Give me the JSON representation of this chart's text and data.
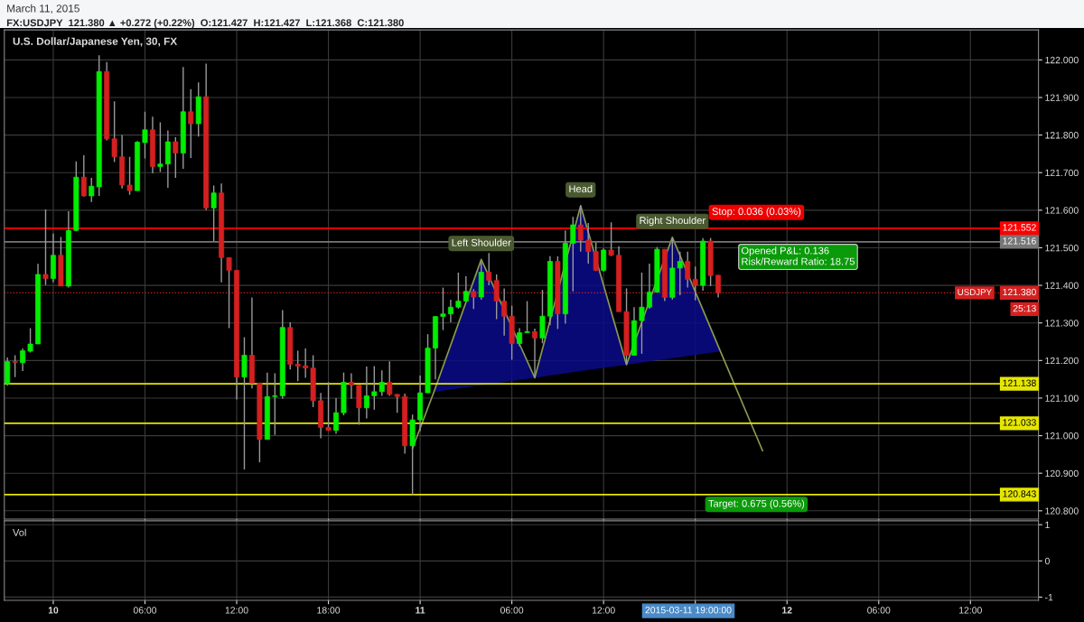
{
  "chart_data": [
    {
      "type": "candlestick",
      "title": "U.S. Dollar/Japanese Yen, 30, FX",
      "subtitle": "FX:USDJPY  121.380 ▲ +0.272 (+0.22%)  O:121.427  H:121.427  L:121.368  C:121.380",
      "x": [
        "2015-03-09T21:00",
        "2015-03-09T21:30",
        "2015-03-09T22:00",
        "2015-03-09T22:30",
        "2015-03-09T23:00",
        "2015-03-09T23:30",
        "2015-03-10T00:00",
        "2015-03-10T00:30",
        "2015-03-10T01:00",
        "2015-03-10T01:30",
        "2015-03-10T02:00",
        "2015-03-10T02:30",
        "2015-03-10T03:00",
        "2015-03-10T03:30",
        "2015-03-10T04:00",
        "2015-03-10T04:30",
        "2015-03-10T05:00",
        "2015-03-10T05:30",
        "2015-03-10T06:00",
        "2015-03-10T06:30",
        "2015-03-10T07:00",
        "2015-03-10T07:30",
        "2015-03-10T08:00",
        "2015-03-10T08:30",
        "2015-03-10T09:00",
        "2015-03-10T09:30",
        "2015-03-10T10:00",
        "2015-03-10T10:30",
        "2015-03-10T11:00",
        "2015-03-10T11:30",
        "2015-03-10T12:00",
        "2015-03-10T12:30",
        "2015-03-10T13:00",
        "2015-03-10T13:30",
        "2015-03-10T14:00",
        "2015-03-10T14:30",
        "2015-03-10T15:00",
        "2015-03-10T15:30",
        "2015-03-10T16:00",
        "2015-03-10T16:30",
        "2015-03-10T17:00",
        "2015-03-10T17:30",
        "2015-03-10T18:00",
        "2015-03-10T18:30",
        "2015-03-10T19:00",
        "2015-03-10T19:30",
        "2015-03-10T20:00",
        "2015-03-10T20:30",
        "2015-03-10T21:00",
        "2015-03-10T21:30",
        "2015-03-10T22:00",
        "2015-03-10T22:30",
        "2015-03-10T23:00",
        "2015-03-10T23:30",
        "2015-03-11T00:00",
        "2015-03-11T00:30",
        "2015-03-11T01:00",
        "2015-03-11T01:30",
        "2015-03-11T02:00",
        "2015-03-11T02:30",
        "2015-03-11T03:00",
        "2015-03-11T03:30",
        "2015-03-11T04:00",
        "2015-03-11T04:30",
        "2015-03-11T05:00",
        "2015-03-11T05:30",
        "2015-03-11T06:00",
        "2015-03-11T06:30",
        "2015-03-11T07:00",
        "2015-03-11T07:30",
        "2015-03-11T08:00",
        "2015-03-11T08:30",
        "2015-03-11T09:00",
        "2015-03-11T09:30",
        "2015-03-11T10:00",
        "2015-03-11T10:30",
        "2015-03-11T11:00",
        "2015-03-11T11:30",
        "2015-03-11T12:00",
        "2015-03-11T12:30",
        "2015-03-11T13:00",
        "2015-03-11T13:30",
        "2015-03-11T14:00",
        "2015-03-11T14:30",
        "2015-03-11T15:00",
        "2015-03-11T15:30",
        "2015-03-11T16:00",
        "2015-03-11T16:30",
        "2015-03-11T17:00",
        "2015-03-11T17:30",
        "2015-03-11T18:00",
        "2015-03-11T18:30",
        "2015-03-11T19:00",
        "2015-03-11T19:30"
      ],
      "ohlc": [
        [
          121.138,
          121.208,
          121.133,
          121.197
        ],
        [
          121.197,
          121.214,
          121.156,
          121.195
        ],
        [
          121.194,
          121.232,
          121.172,
          121.226
        ],
        [
          121.225,
          121.286,
          121.221,
          121.244
        ],
        [
          121.244,
          121.457,
          121.244,
          121.429
        ],
        [
          121.429,
          121.602,
          121.401,
          121.418
        ],
        [
          121.418,
          121.538,
          121.408,
          121.48
        ],
        [
          121.48,
          121.529,
          121.398,
          121.398
        ],
        [
          121.398,
          121.597,
          121.394,
          121.546
        ],
        [
          121.546,
          121.73,
          121.544,
          121.688
        ],
        [
          121.688,
          121.746,
          121.636,
          121.638
        ],
        [
          121.638,
          121.686,
          121.622,
          121.664
        ],
        [
          121.662,
          122.012,
          121.638,
          121.969
        ],
        [
          121.969,
          121.994,
          121.786,
          121.79
        ],
        [
          121.79,
          121.89,
          121.728,
          121.742
        ],
        [
          121.742,
          121.8,
          121.658,
          121.667
        ],
        [
          121.667,
          121.742,
          121.641,
          121.652
        ],
        [
          121.652,
          121.784,
          121.652,
          121.781
        ],
        [
          121.78,
          121.862,
          121.738,
          121.814
        ],
        [
          121.814,
          121.849,
          121.698,
          121.716
        ],
        [
          121.716,
          121.834,
          121.702,
          121.723
        ],
        [
          121.723,
          121.812,
          121.66,
          121.782
        ],
        [
          121.782,
          121.794,
          121.686,
          121.752
        ],
        [
          121.752,
          121.981,
          121.71,
          121.862
        ],
        [
          121.862,
          121.922,
          121.739,
          121.83
        ],
        [
          121.83,
          121.94,
          121.796,
          121.902
        ],
        [
          121.902,
          121.99,
          121.6,
          121.606
        ],
        [
          121.606,
          121.666,
          121.518,
          121.646
        ],
        [
          121.646,
          121.671,
          121.408,
          121.474
        ],
        [
          121.474,
          121.474,
          121.286,
          121.44
        ],
        [
          121.44,
          121.44,
          121.096,
          121.156
        ],
        [
          121.156,
          121.262,
          120.91,
          121.214
        ],
        [
          121.214,
          121.368,
          121.126,
          121.14
        ],
        [
          121.14,
          121.14,
          120.929,
          120.99
        ],
        [
          120.99,
          121.168,
          120.99,
          121.104
        ],
        [
          121.104,
          121.166,
          121.002,
          121.106
        ],
        [
          121.106,
          121.334,
          121.098,
          121.288
        ],
        [
          121.288,
          121.302,
          121.176,
          121.19
        ],
        [
          121.19,
          121.226,
          121.145,
          121.185
        ],
        [
          121.186,
          121.232,
          121.154,
          121.18
        ],
        [
          121.18,
          121.214,
          121.076,
          121.093
        ],
        [
          121.093,
          121.114,
          120.993,
          121.022
        ],
        [
          121.022,
          121.142,
          121.013,
          121.014
        ],
        [
          121.014,
          121.1,
          121.005,
          121.061
        ],
        [
          121.061,
          121.168,
          121.054,
          121.142
        ],
        [
          121.142,
          121.166,
          121.098,
          121.134
        ],
        [
          121.134,
          121.134,
          121.029,
          121.074
        ],
        [
          121.074,
          121.184,
          121.046,
          121.106
        ],
        [
          121.106,
          121.185,
          121.069,
          121.117
        ],
        [
          121.117,
          121.174,
          121.106,
          121.142
        ],
        [
          121.142,
          121.198,
          121.106,
          121.11
        ],
        [
          121.11,
          121.11,
          121.061,
          121.104
        ],
        [
          121.104,
          121.112,
          120.952,
          120.973
        ],
        [
          120.973,
          121.056,
          120.843,
          121.042
        ],
        [
          121.042,
          121.16,
          121.012,
          121.114
        ],
        [
          121.114,
          121.27,
          121.114,
          121.233
        ],
        [
          121.233,
          121.318,
          121.15,
          121.317
        ],
        [
          121.317,
          121.394,
          121.281,
          121.324
        ],
        [
          121.324,
          121.362,
          121.302,
          121.342
        ],
        [
          121.342,
          121.434,
          121.338,
          121.358
        ],
        [
          121.358,
          121.424,
          121.357,
          121.384
        ],
        [
          121.384,
          121.39,
          121.337,
          121.369
        ],
        [
          121.369,
          121.462,
          121.362,
          121.435
        ],
        [
          121.435,
          121.486,
          121.4,
          121.413
        ],
        [
          121.413,
          121.429,
          121.31,
          121.358
        ],
        [
          121.358,
          121.392,
          121.266,
          121.318
        ],
        [
          121.318,
          121.346,
          121.202,
          121.245
        ],
        [
          121.245,
          121.286,
          121.238,
          121.274
        ],
        [
          121.274,
          121.358,
          121.273,
          121.277
        ],
        [
          121.277,
          121.285,
          121.154,
          121.26
        ],
        [
          121.26,
          121.388,
          121.246,
          121.318
        ],
        [
          121.318,
          121.478,
          121.294,
          121.464
        ],
        [
          121.464,
          121.477,
          121.284,
          121.324
        ],
        [
          121.324,
          121.546,
          121.298,
          121.512
        ],
        [
          121.512,
          121.582,
          121.384,
          121.561
        ],
        [
          121.561,
          121.612,
          121.49,
          121.52
        ],
        [
          121.52,
          121.566,
          121.458,
          121.49
        ],
        [
          121.49,
          121.514,
          121.438,
          121.44
        ],
        [
          121.44,
          121.498,
          121.437,
          121.494
        ],
        [
          121.494,
          121.568,
          121.478,
          121.48
        ],
        [
          121.48,
          121.504,
          121.33,
          121.33
        ],
        [
          121.33,
          121.392,
          121.19,
          121.214
        ],
        [
          121.214,
          121.342,
          121.214,
          121.306
        ],
        [
          121.306,
          121.434,
          121.218,
          121.342
        ],
        [
          121.342,
          121.458,
          121.338,
          121.382
        ],
        [
          121.382,
          121.502,
          121.381,
          121.496
        ],
        [
          121.496,
          121.496,
          121.358,
          121.368
        ],
        [
          121.368,
          121.526,
          121.362,
          121.446
        ],
        [
          121.446,
          121.49,
          121.374,
          121.464
        ],
        [
          121.464,
          121.49,
          121.394,
          121.416
        ],
        [
          121.416,
          121.45,
          121.36,
          121.4
        ],
        [
          121.4,
          121.526,
          121.386,
          121.518
        ],
        [
          121.518,
          121.526,
          121.398,
          121.426
        ],
        [
          121.427,
          121.427,
          121.368,
          121.38
        ]
      ],
      "series": [
        {
          "type": "line",
          "color": "#8a9a50",
          "x": [
            "2015-03-10T23:30",
            "2015-03-11T00:54",
            "2015-03-11T04:00",
            "2015-03-11T07:30",
            "2015-03-11T10:30",
            "2015-03-11T13:30",
            "2015-03-11T16:30",
            "2015-03-11T19:39",
            "2015-03-11T22:24"
          ],
          "values": [
            120.966,
            121.116,
            121.469,
            121.154,
            121.612,
            121.189,
            121.528,
            121.224,
            120.96
          ],
          "lower": [
            120.966,
            121.116,
            121.134,
            121.154,
            121.172,
            121.189,
            121.206,
            121.224,
            120.96
          ],
          "upper": [
            120.966,
            121.116,
            121.469,
            121.154,
            121.612,
            121.189,
            121.528,
            121.224,
            120.96
          ]
        }
      ],
      "xlim": [
        "2015-03-09T20:48",
        "2015-03-12T16:27"
      ],
      "xticks": [
        {
          "value": "2015-03-10T00:00",
          "label": null
        },
        {
          "value": "2015-03-10T06:00",
          "label": null
        },
        {
          "value": "2015-03-10T12:00",
          "label": null
        },
        {
          "value": "2015-03-10T18:00",
          "label": null
        },
        {
          "value": "2015-03-11T00:00",
          "label": null
        },
        {
          "value": "2015-03-11T06:00",
          "label": null
        },
        {
          "value": "2015-03-11T12:00",
          "label": null
        },
        {
          "value": "2015-03-11T18:00",
          "label": null
        },
        {
          "value": "2015-03-12T00:00",
          "label": null
        },
        {
          "value": "2015-03-12T06:00",
          "label": null
        },
        {
          "value": "2015-03-12T12:00",
          "label": null
        }
      ],
      "ylim": [
        120.778,
        122.08
      ],
      "yticks": [
        {
          "value": 120.8,
          "label": "120.800"
        },
        {
          "value": 120.9,
          "label": "120.900"
        },
        {
          "value": 121.0,
          "label": "121.000"
        },
        {
          "value": 121.1,
          "label": "121.100"
        },
        {
          "value": 121.2,
          "label": "121.200"
        },
        {
          "value": 121.3,
          "label": "121.300"
        },
        {
          "value": 121.4,
          "label": "121.400"
        },
        {
          "value": 121.5,
          "label": "121.500"
        },
        {
          "value": 121.6,
          "label": "121.600"
        },
        {
          "value": 121.7,
          "label": "121.700"
        },
        {
          "value": 121.8,
          "label": "121.800"
        },
        {
          "value": 121.9,
          "label": "121.900"
        },
        {
          "value": 122.0,
          "label": "122.000"
        }
      ],
      "grid": true,
      "tick_labels": "y",
      "ref_lines": [
        {
          "axis": "y",
          "value": 121.552,
          "label": "121.552",
          "color": "#ff0000",
          "line_style": "solid"
        },
        {
          "axis": "y",
          "value": 121.516,
          "label": "121.516",
          "color": "#777777",
          "line_style": "solid"
        },
        {
          "axis": "y",
          "value": 121.38,
          "label": "121.380",
          "color": "#d42020",
          "line_style": "dotted"
        },
        {
          "axis": "y",
          "value": 121.138,
          "label": "121.138",
          "color": "#e6e600",
          "line_style": "solid"
        },
        {
          "axis": "y",
          "value": 121.033,
          "label": "121.033",
          "color": "#e6e600",
          "line_style": "solid"
        },
        {
          "axis": "y",
          "value": 120.843,
          "label": "120.843",
          "color": "#e6e600",
          "line_style": "solid"
        }
      ],
      "annotations": [
        "March 11, 2015",
        {
          "text": "Left Shoulder",
          "x": "2015-03-11T04:00",
          "y": 121.469
        },
        {
          "text": "Head",
          "x": "2015-03-11T10:30",
          "y": 121.612
        },
        {
          "text": "Right Shoulder",
          "x": "2015-03-11T16:30",
          "y": 121.528
        },
        {
          "text": "Stop: 0.036 (0.03%)",
          "x": "2015-03-11T22:00",
          "y": 121.552
        },
        {
          "text": "Opened P&L: 0.136\nRisk/Reward Ratio: 18.75",
          "x": "2015-03-11T21:00",
          "y": 121.516
        },
        {
          "text": "Target: 0.675 (0.56%)",
          "x": "2015-03-11T22:00",
          "y": 120.843
        },
        {
          "text": "USDJPY",
          "y": 121.38
        },
        {
          "text": "25:13",
          "y": 121.38
        }
      ]
    },
    {
      "type": "bar",
      "title": "Vol",
      "xlim": [
        "2015-03-09T20:48",
        "2015-03-12T16:27"
      ],
      "xticks": [
        {
          "value": "2015-03-10T00:00",
          "label": "10"
        },
        {
          "value": "2015-03-10T06:00",
          "label": "06:00"
        },
        {
          "value": "2015-03-10T12:00",
          "label": "12:00"
        },
        {
          "value": "2015-03-10T18:00",
          "label": "18:00"
        },
        {
          "value": "2015-03-11T00:00",
          "label": "11"
        },
        {
          "value": "2015-03-11T06:00",
          "label": "06:00"
        },
        {
          "value": "2015-03-11T12:00",
          "label": "12:00"
        },
        {
          "value": "2015-03-11T18:00",
          "label": null
        },
        {
          "value": "2015-03-12T00:00",
          "label": "12"
        },
        {
          "value": "2015-03-12T06:00",
          "label": "06:00"
        },
        {
          "value": "2015-03-12T12:00",
          "label": "12:00"
        }
      ],
      "ylim": [
        -1.09,
        1.11
      ],
      "yticks": [
        1,
        0,
        -1
      ],
      "grid": true,
      "annotations": [
        "2015-03-11 19:00:00"
      ]
    }
  ]
}
